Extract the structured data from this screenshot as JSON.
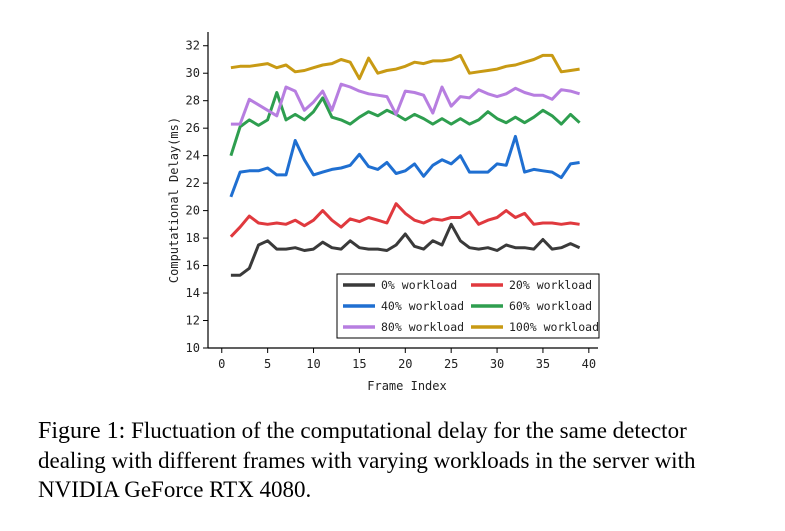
{
  "caption": {
    "label": "Figure 1:",
    "text": "Fluctuation of the computational delay for the same detector dealing with different frames with varying workloads in the server with NVIDIA GeForce RTX 4080."
  },
  "chart_data": {
    "type": "line",
    "title": "",
    "xlabel": "Frame Index",
    "ylabel": "Computational Delay(ms)",
    "xlim": [
      -1.5,
      41
    ],
    "ylim": [
      10,
      33
    ],
    "xticks": [
      0,
      5,
      10,
      15,
      20,
      25,
      30,
      35,
      40
    ],
    "yticks": [
      10,
      12,
      14,
      16,
      18,
      20,
      22,
      24,
      26,
      28,
      30,
      32
    ],
    "grid": false,
    "legend_position": "bottom-right",
    "x": [
      1,
      2,
      3,
      4,
      5,
      6,
      7,
      8,
      9,
      10,
      11,
      12,
      13,
      14,
      15,
      16,
      17,
      18,
      19,
      20,
      21,
      22,
      23,
      24,
      25,
      26,
      27,
      28,
      29,
      30,
      31,
      32,
      33,
      34,
      35,
      36,
      37,
      38,
      39
    ],
    "series": [
      {
        "name": "0% workload",
        "color": "#3a3a3a",
        "values": [
          15.3,
          15.3,
          15.8,
          17.5,
          17.8,
          17.2,
          17.2,
          17.3,
          17.1,
          17.2,
          17.7,
          17.3,
          17.2,
          17.8,
          17.3,
          17.2,
          17.2,
          17.1,
          17.5,
          18.3,
          17.4,
          17.2,
          17.8,
          17.5,
          19.0,
          17.8,
          17.3,
          17.2,
          17.3,
          17.1,
          17.5,
          17.3,
          17.3,
          17.2,
          17.9,
          17.2,
          17.3,
          17.6,
          17.3
        ]
      },
      {
        "name": "20% workload",
        "color": "#e0393e",
        "values": [
          18.1,
          18.8,
          19.6,
          19.1,
          19.0,
          19.1,
          19.0,
          19.3,
          18.9,
          19.3,
          20.0,
          19.3,
          18.8,
          19.4,
          19.2,
          19.5,
          19.3,
          19.1,
          20.5,
          19.8,
          19.3,
          19.1,
          19.4,
          19.3,
          19.5,
          19.5,
          19.9,
          19.0,
          19.3,
          19.5,
          20.0,
          19.5,
          19.8,
          19.0,
          19.1,
          19.1,
          19.0,
          19.1,
          19.0
        ]
      },
      {
        "name": "40% workload",
        "color": "#1f6fd1",
        "values": [
          21.0,
          22.8,
          22.9,
          22.9,
          23.1,
          22.6,
          22.6,
          25.1,
          23.7,
          22.6,
          22.8,
          23.0,
          23.1,
          23.3,
          24.1,
          23.2,
          23.0,
          23.5,
          22.7,
          22.9,
          23.4,
          22.5,
          23.3,
          23.7,
          23.4,
          24.0,
          22.8,
          22.8,
          22.8,
          23.4,
          23.3,
          25.4,
          22.8,
          23.0,
          22.9,
          22.8,
          22.4,
          23.4,
          23.5
        ]
      },
      {
        "name": "60% workload",
        "color": "#2e9e4f",
        "values": [
          24.0,
          26.1,
          26.6,
          26.2,
          26.6,
          28.6,
          26.6,
          27.0,
          26.6,
          27.2,
          28.2,
          26.8,
          26.6,
          26.3,
          26.8,
          27.2,
          26.9,
          27.3,
          27.0,
          26.6,
          27.0,
          26.7,
          26.3,
          26.7,
          26.3,
          26.7,
          26.3,
          26.6,
          27.2,
          26.7,
          26.4,
          26.8,
          26.4,
          26.8,
          27.3,
          26.9,
          26.3,
          27.0,
          26.4
        ]
      },
      {
        "name": "80% workload",
        "color": "#b77ee0",
        "values": [
          26.3,
          26.3,
          28.1,
          27.7,
          27.3,
          26.9,
          29.0,
          28.7,
          27.3,
          27.9,
          28.7,
          27.3,
          29.2,
          29.0,
          28.7,
          28.5,
          28.4,
          28.3,
          27.0,
          28.7,
          28.6,
          28.4,
          27.1,
          29.0,
          27.6,
          28.3,
          28.2,
          28.8,
          28.5,
          28.3,
          28.5,
          28.9,
          28.6,
          28.4,
          28.4,
          28.1,
          28.8,
          28.7,
          28.5
        ]
      },
      {
        "name": "100% workload",
        "color": "#c89a14",
        "values": [
          30.4,
          30.5,
          30.5,
          30.6,
          30.7,
          30.4,
          30.6,
          30.1,
          30.2,
          30.4,
          30.6,
          30.7,
          31.0,
          30.8,
          29.6,
          31.1,
          30.0,
          30.2,
          30.3,
          30.5,
          30.8,
          30.7,
          30.9,
          30.9,
          31.0,
          31.3,
          30.0,
          30.1,
          30.2,
          30.3,
          30.5,
          30.6,
          30.8,
          31.0,
          31.3,
          31.3,
          30.1,
          30.2,
          30.3
        ]
      }
    ]
  }
}
